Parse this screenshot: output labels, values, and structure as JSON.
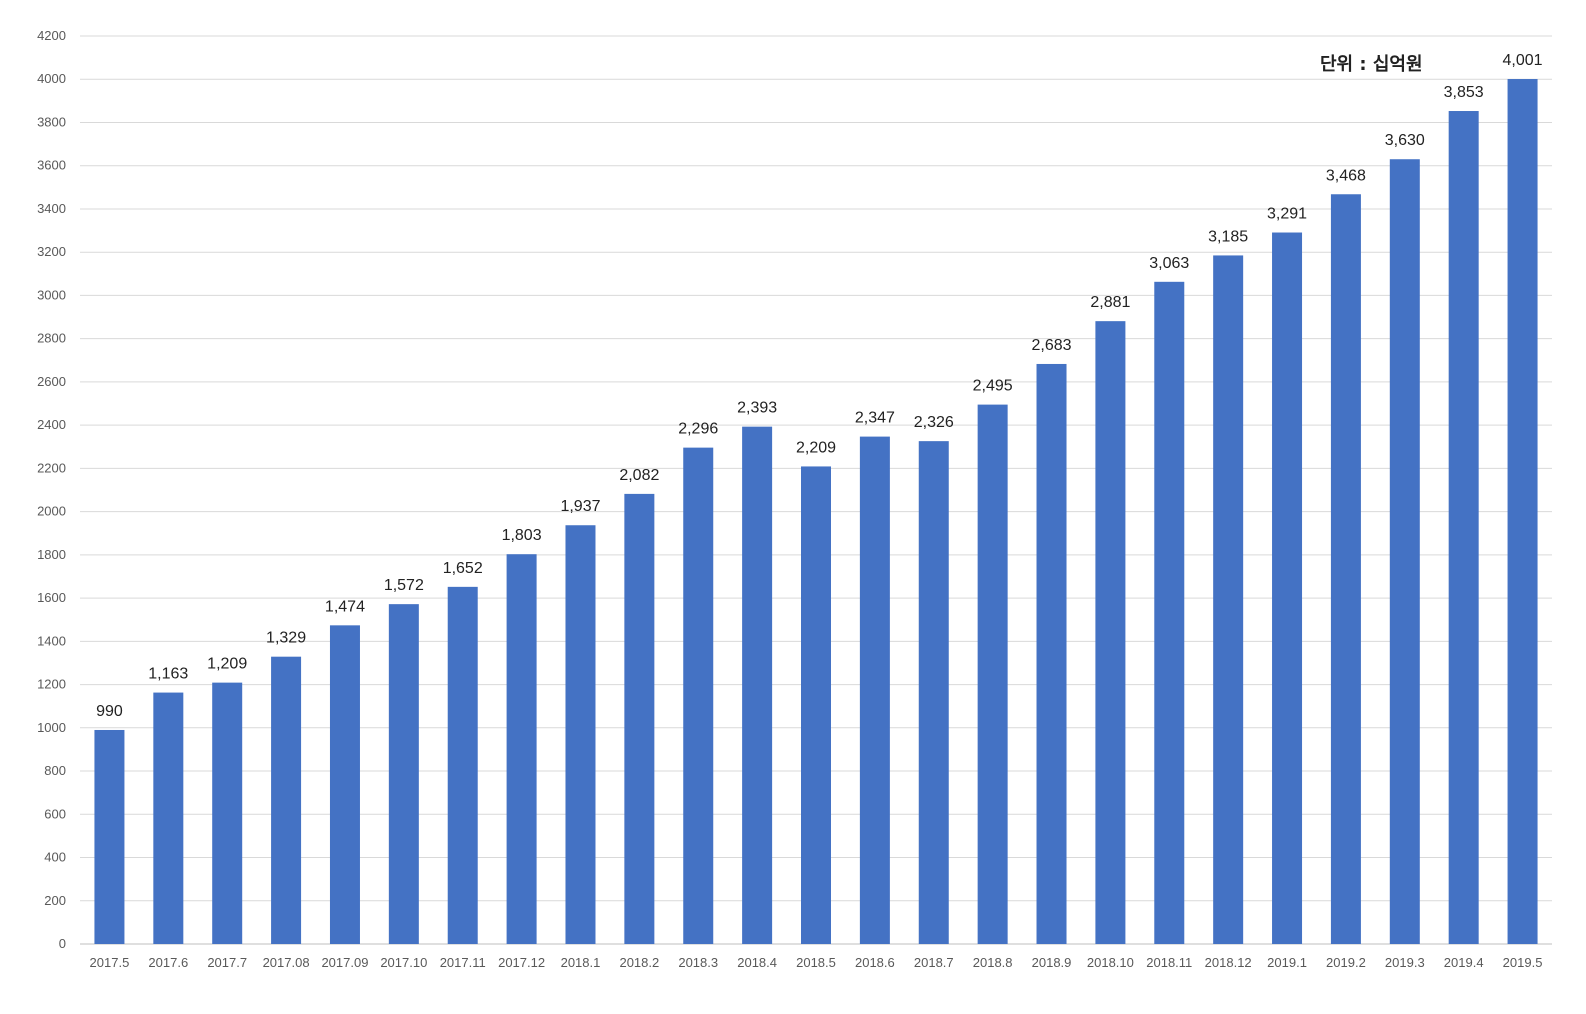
{
  "chart_data": {
    "type": "bar",
    "unit_note": "단위 : 십억원",
    "categories": [
      "2017.5",
      "2017.6",
      "2017.7",
      "2017.08",
      "2017.09",
      "2017.10",
      "2017.11",
      "2017.12",
      "2018.1",
      "2018.2",
      "2018.3",
      "2018.4",
      "2018.5",
      "2018.6",
      "2018.7",
      "2018.8",
      "2018.9",
      "2018.10",
      "2018.11",
      "2018.12",
      "2019.1",
      "2019.2",
      "2019.3",
      "2019.4",
      "2019.5"
    ],
    "values": [
      990,
      1163,
      1209,
      1329,
      1474,
      1572,
      1652,
      1803,
      1937,
      2082,
      2296,
      2393,
      2209,
      2347,
      2326,
      2495,
      2683,
      2881,
      3063,
      3185,
      3291,
      3468,
      3630,
      3853,
      4001
    ],
    "value_labels": [
      "990",
      "1,163",
      "1,209",
      "1,329",
      "1,474",
      "1,572",
      "1,652",
      "1,803",
      "1,937",
      "2,082",
      "2,296",
      "2,393",
      "2,209",
      "2,347",
      "2,326",
      "2,495",
      "2,683",
      "2,881",
      "3,063",
      "3,185",
      "3,291",
      "3,468",
      "3,630",
      "3,853",
      "4,001"
    ],
    "ylim": [
      0,
      4200
    ],
    "yticks": [
      "0",
      "200",
      "400",
      "600",
      "800",
      "1000",
      "1200",
      "1400",
      "1600",
      "1800",
      "2000",
      "2200",
      "2400",
      "2600",
      "2800",
      "3000",
      "3200",
      "3400",
      "3600",
      "3800",
      "4000",
      "4200"
    ],
    "grid": true,
    "legend": "none",
    "colors": {
      "bar": "#4472C4",
      "grid": "#d9d9d9"
    }
  }
}
